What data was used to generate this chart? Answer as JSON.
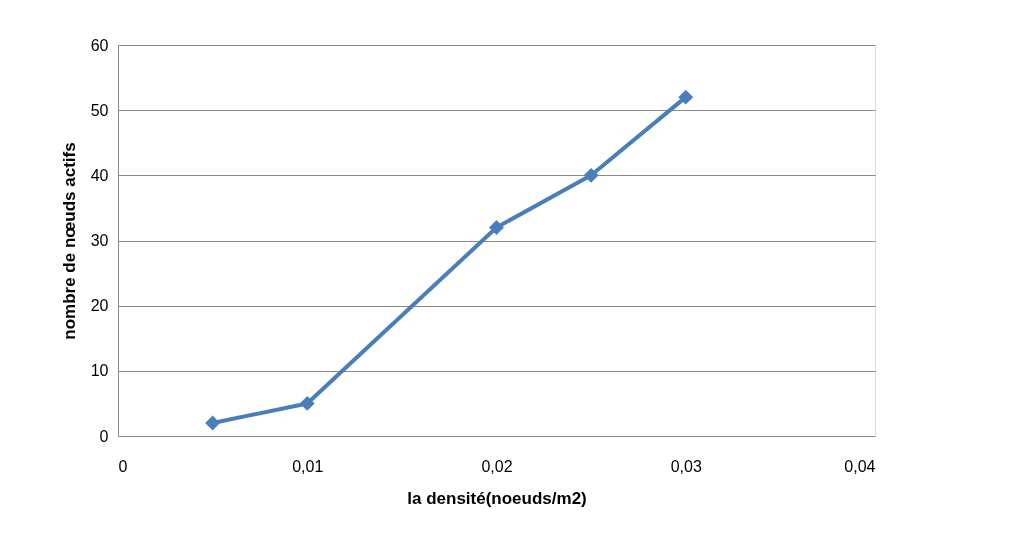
{
  "chart_data": {
    "type": "line",
    "xlabel": "la densité(noeuds/m2)",
    "ylabel": "nombre de nœuds actifs",
    "x": [
      0.005,
      0.01,
      0.02,
      0.025,
      0.03
    ],
    "series": [
      {
        "color": "#4a7ebb",
        "values": [
          2,
          5,
          32,
          40,
          52
        ]
      }
    ],
    "xlim": [
      0,
      0.04
    ],
    "xticks": [
      0,
      {
        "value": 0.01,
        "label": "0,01"
      },
      {
        "value": 0.02,
        "label": "0,02"
      },
      {
        "value": 0.03,
        "label": "0,03"
      },
      {
        "value": 0.04,
        "label": "0,04"
      }
    ],
    "ylim": [
      0,
      60
    ],
    "yticks": [
      0,
      10,
      20,
      30,
      40,
      50,
      60
    ],
    "grid": "y",
    "marker": "diamond",
    "line_style": "solid"
  }
}
